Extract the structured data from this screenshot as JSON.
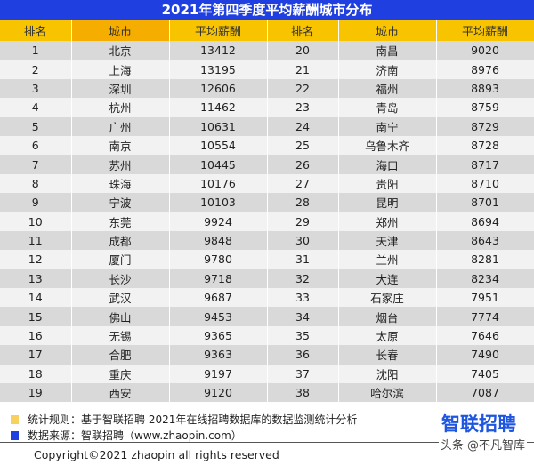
{
  "title": "2021年第四季度平均薪酬城市分布",
  "headers": [
    "排名",
    "城市",
    "平均薪酬",
    "排名",
    "城市",
    "平均薪酬"
  ],
  "rows": [
    [
      "1",
      "北京",
      "13412",
      "20",
      "南昌",
      "9020"
    ],
    [
      "2",
      "上海",
      "13195",
      "21",
      "济南",
      "8976"
    ],
    [
      "3",
      "深圳",
      "12606",
      "22",
      "福州",
      "8893"
    ],
    [
      "4",
      "杭州",
      "11462",
      "23",
      "青岛",
      "8759"
    ],
    [
      "5",
      "广州",
      "10631",
      "24",
      "南宁",
      "8729"
    ],
    [
      "6",
      "南京",
      "10554",
      "25",
      "乌鲁木齐",
      "8728"
    ],
    [
      "7",
      "苏州",
      "10445",
      "26",
      "海口",
      "8717"
    ],
    [
      "8",
      "珠海",
      "10176",
      "27",
      "贵阳",
      "8710"
    ],
    [
      "9",
      "宁波",
      "10103",
      "28",
      "昆明",
      "8701"
    ],
    [
      "10",
      "东莞",
      "9924",
      "29",
      "郑州",
      "8694"
    ],
    [
      "11",
      "成都",
      "9848",
      "30",
      "天津",
      "8643"
    ],
    [
      "12",
      "厦门",
      "9780",
      "31",
      "兰州",
      "8281"
    ],
    [
      "13",
      "长沙",
      "9718",
      "32",
      "大连",
      "8234"
    ],
    [
      "14",
      "武汉",
      "9687",
      "33",
      "石家庄",
      "7951"
    ],
    [
      "15",
      "佛山",
      "9453",
      "34",
      "烟台",
      "7774"
    ],
    [
      "16",
      "无锡",
      "9365",
      "35",
      "太原",
      "7646"
    ],
    [
      "17",
      "合肥",
      "9363",
      "36",
      "长春",
      "7490"
    ],
    [
      "18",
      "重庆",
      "9197",
      "37",
      "沈阳",
      "7405"
    ],
    [
      "19",
      "西安",
      "9120",
      "38",
      "哈尔滨",
      "7087"
    ]
  ],
  "footer": {
    "rule": "统计规则：基于智联招聘  2021年在线招聘数据库的数据监测统计分析",
    "source": "数据来源：智联招聘（www.zhaopin.com）",
    "copyright": "Copyright©2021 zhaopin all rights reserved",
    "logo": "智联招聘",
    "watermark": "头条 @不凡智库",
    "rule_color": "#f8d060",
    "source_color": "#1f3fe0"
  }
}
